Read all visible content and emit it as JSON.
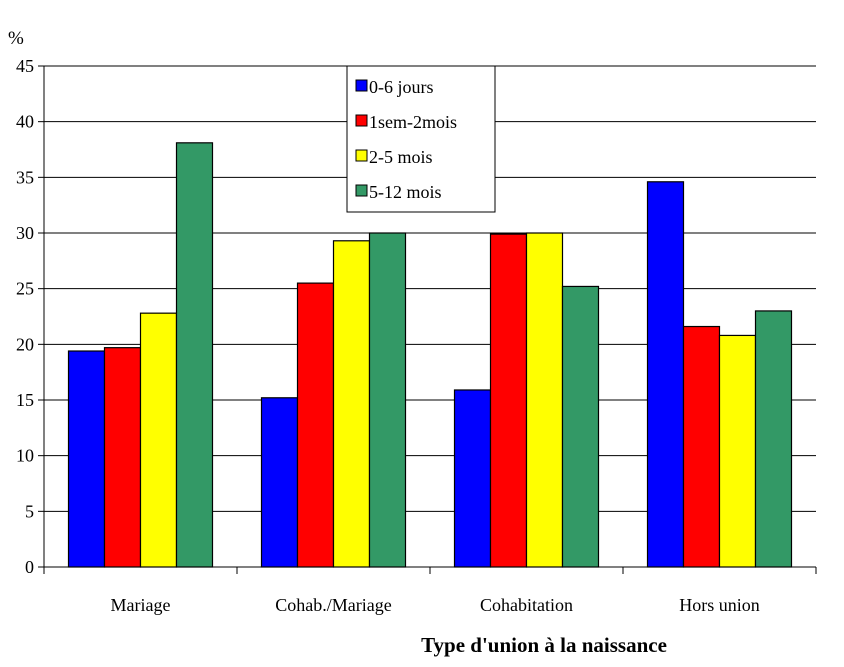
{
  "chart_data": {
    "type": "bar",
    "title": "",
    "ylabel": "%",
    "xlabel": "Type d'union à la naissance",
    "categories": [
      "Mariage",
      "Cohab./Mariage",
      "Cohabitation",
      "Hors union"
    ],
    "series": [
      {
        "name": "0-6 jours",
        "color": "#0000FF",
        "values": [
          19.4,
          15.2,
          15.9,
          34.6
        ]
      },
      {
        "name": "1sem-2mois",
        "color": "#FF0000",
        "values": [
          19.7,
          25.5,
          29.9,
          21.6
        ]
      },
      {
        "name": "2-5 mois",
        "color": "#FFFF00",
        "values": [
          22.8,
          29.3,
          30.0,
          20.8
        ]
      },
      {
        "name": "5-12 mois",
        "color": "#339966",
        "values": [
          38.1,
          30.0,
          25.2,
          23.0
        ]
      }
    ],
    "ylim": [
      0,
      45
    ],
    "yticks": [
      0,
      5,
      10,
      15,
      20,
      25,
      30,
      35,
      40,
      45
    ],
    "grid": true,
    "legend_position": "top-center"
  }
}
